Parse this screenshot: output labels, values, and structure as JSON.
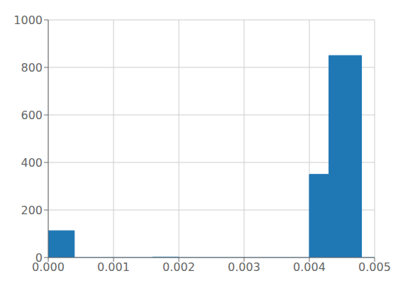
{
  "chart_data": {
    "type": "histogram",
    "bins": [
      0.0,
      0.0004,
      0.0008,
      0.0012,
      0.0016,
      0.002,
      0.0024,
      0.0028,
      0.0032,
      0.0036,
      0.004,
      0.0043,
      0.0048,
      0.005
    ],
    "values": [
      113,
      0,
      0,
      0,
      2,
      0,
      0,
      0,
      0,
      0,
      350,
      850,
      0
    ],
    "color": "#1f77b4",
    "xlim": [
      0.0,
      0.005
    ],
    "xticks": [
      {
        "value": 0.0,
        "label": "0.000"
      },
      0.001,
      0.002,
      0.003,
      0.004,
      0.005
    ],
    "ylim": [
      0,
      1000
    ],
    "yticks": [
      0,
      200,
      400,
      600,
      800,
      1000
    ],
    "grid": true
  }
}
